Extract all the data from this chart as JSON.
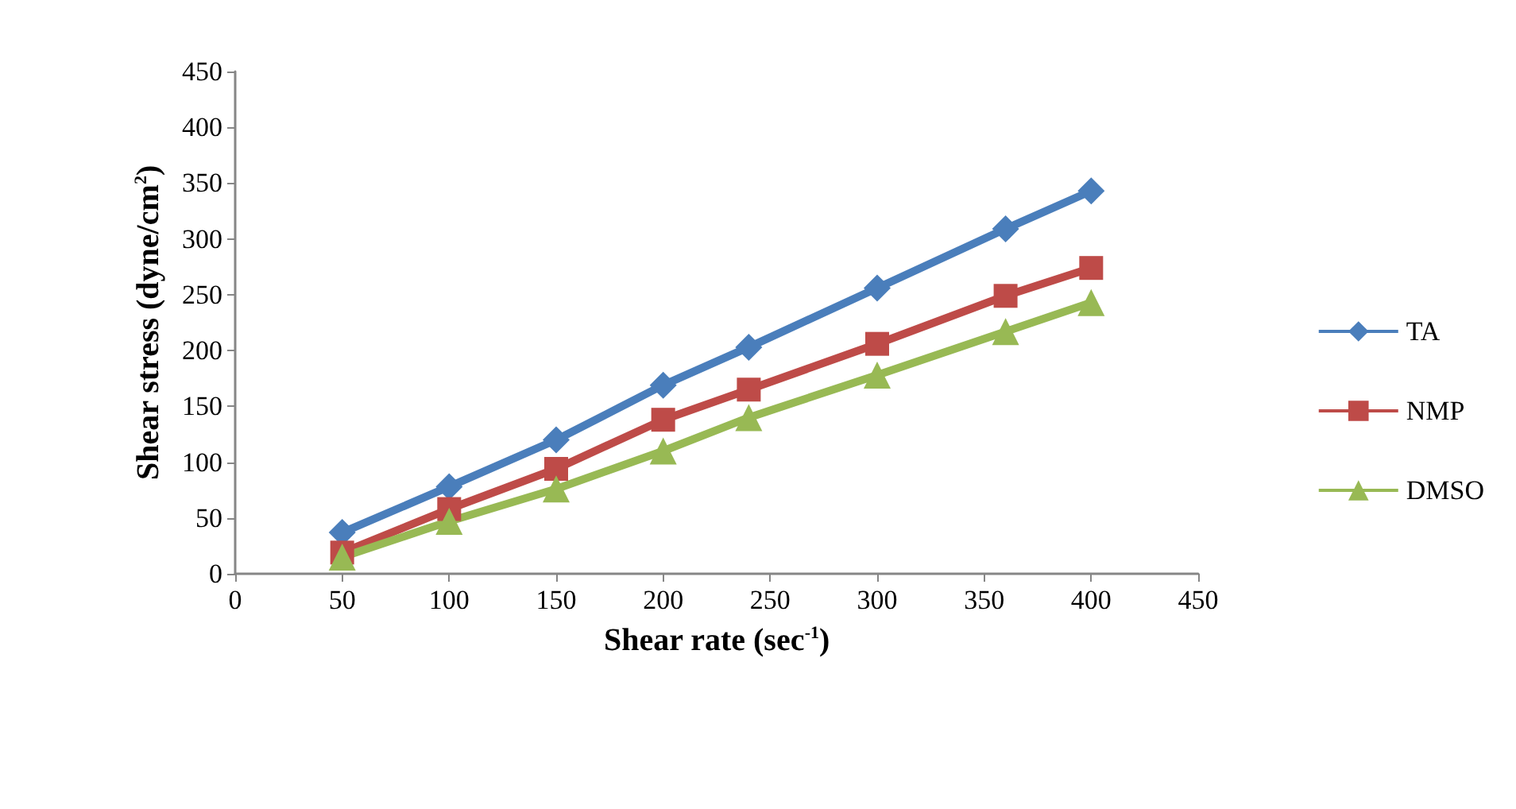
{
  "chart_data": {
    "type": "line",
    "xlabel": "Shear rate (sec$^{-1}$)",
    "ylabel": "Shear stress (dyne/cm$^{2}$)",
    "x": [
      50,
      100,
      150,
      200,
      240,
      300,
      360,
      400
    ],
    "series": [
      {
        "name": "TA",
        "color": "#4a7ebb",
        "marker": "diamond",
        "values": [
          37,
          78,
          120,
          169,
          203,
          256,
          309,
          343
        ]
      },
      {
        "name": "NMP",
        "color": "#be4b48",
        "marker": "square",
        "values": [
          19,
          58,
          94,
          138,
          165,
          206,
          249,
          274
        ]
      },
      {
        "name": "DMSO",
        "color": "#98b954",
        "marker": "triangle",
        "values": [
          15,
          47,
          76,
          110,
          140,
          178,
          217,
          243
        ]
      }
    ],
    "xlim": [
      0,
      450
    ],
    "xticks": [
      0,
      50,
      100,
      150,
      200,
      250,
      300,
      350,
      400,
      450
    ],
    "ylim": [
      0,
      450
    ],
    "yticks": [
      0,
      50,
      100,
      150,
      200,
      250,
      300,
      350,
      400,
      450
    ],
    "grid": false,
    "legend": "right",
    "line_style": "solid"
  }
}
